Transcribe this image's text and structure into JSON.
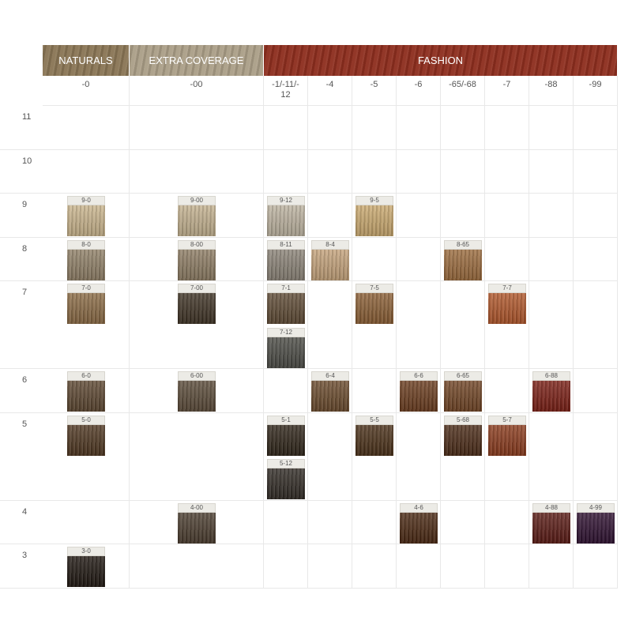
{
  "groups": [
    {
      "label": "NATURALS",
      "color": "#8a7656",
      "columns": [
        "-0"
      ]
    },
    {
      "label": "EXTRA COVERAGE",
      "color": "#ab9f88",
      "columns": [
        "-00"
      ]
    },
    {
      "label": "FASHION",
      "color": "#8e2f1f",
      "columns": [
        "-1/-11/-12",
        "-4",
        "-5",
        "-6",
        "-65/-68",
        "-7",
        "-88",
        "-99"
      ]
    }
  ],
  "levels": [
    {
      "label": "11",
      "lines": [
        [
          null,
          null,
          null,
          null,
          null,
          null,
          null,
          null,
          null,
          null
        ]
      ]
    },
    {
      "label": "10",
      "lines": [
        [
          null,
          null,
          null,
          null,
          null,
          null,
          null,
          null,
          null,
          null
        ]
      ]
    },
    {
      "label": "9",
      "lines": [
        [
          {
            "label": "9-0",
            "color": "#c9b48c"
          },
          {
            "label": "9-00",
            "color": "#c2b08e"
          },
          {
            "label": "9-12",
            "color": "#bcb29f"
          },
          null,
          {
            "label": "9-5",
            "color": "#c9a86e"
          },
          null,
          null,
          null,
          null,
          null
        ]
      ]
    },
    {
      "label": "8",
      "lines": [
        [
          {
            "label": "8-0",
            "color": "#8f7f66"
          },
          {
            "label": "8-00",
            "color": "#8c7b62"
          },
          {
            "label": "8-11",
            "color": "#8a8276"
          },
          {
            "label": "8-4",
            "color": "#c4a27a"
          },
          null,
          null,
          {
            "label": "8-65",
            "color": "#9a6a3c"
          },
          null,
          null,
          null
        ]
      ]
    },
    {
      "label": "7",
      "lines": [
        [
          {
            "label": "7-0",
            "color": "#8a6a44"
          },
          {
            "label": "7-00",
            "color": "#3e3224"
          },
          {
            "label": "7-1",
            "color": "#5e4a34"
          },
          null,
          {
            "label": "7-5",
            "color": "#8a5e34"
          },
          null,
          null,
          {
            "label": "7-7",
            "color": "#b0562a"
          },
          null,
          null
        ],
        [
          null,
          null,
          {
            "label": "7-12",
            "color": "#4a4a44"
          },
          null,
          null,
          null,
          null,
          null,
          null,
          null
        ]
      ]
    },
    {
      "label": "6",
      "lines": [
        [
          {
            "label": "6-0",
            "color": "#5c4630"
          },
          {
            "label": "6-00",
            "color": "#5a4a38"
          },
          null,
          {
            "label": "6-4",
            "color": "#6a4a2c"
          },
          null,
          {
            "label": "6-6",
            "color": "#6a3c1e"
          },
          {
            "label": "6-65",
            "color": "#704424"
          },
          null,
          {
            "label": "6-88",
            "color": "#7a1e14"
          },
          null
        ]
      ]
    },
    {
      "label": "5",
      "lines": [
        [
          {
            "label": "5-0",
            "color": "#4e3620"
          },
          null,
          {
            "label": "5-1",
            "color": "#2e2418"
          },
          null,
          {
            "label": "5-5",
            "color": "#4a3018"
          },
          null,
          {
            "label": "5-68",
            "color": "#4a2a16"
          },
          {
            "label": "5-7",
            "color": "#8a3a1c"
          },
          null,
          null
        ],
        [
          null,
          null,
          {
            "label": "5-12",
            "color": "#302a24"
          },
          null,
          null,
          null,
          null,
          null,
          null,
          null
        ]
      ]
    },
    {
      "label": "4",
      "lines": [
        [
          null,
          {
            "label": "4-00",
            "color": "#4a3c2e"
          },
          null,
          null,
          null,
          {
            "label": "4-6",
            "color": "#4a2812"
          },
          null,
          null,
          {
            "label": "4-88",
            "color": "#5a1a14"
          },
          {
            "label": "4-99",
            "color": "#2e1030"
          }
        ]
      ]
    },
    {
      "label": "3",
      "lines": [
        [
          {
            "label": "3-0",
            "color": "#1e1610"
          },
          null,
          null,
          null,
          null,
          null,
          null,
          null,
          null,
          null
        ]
      ]
    }
  ]
}
